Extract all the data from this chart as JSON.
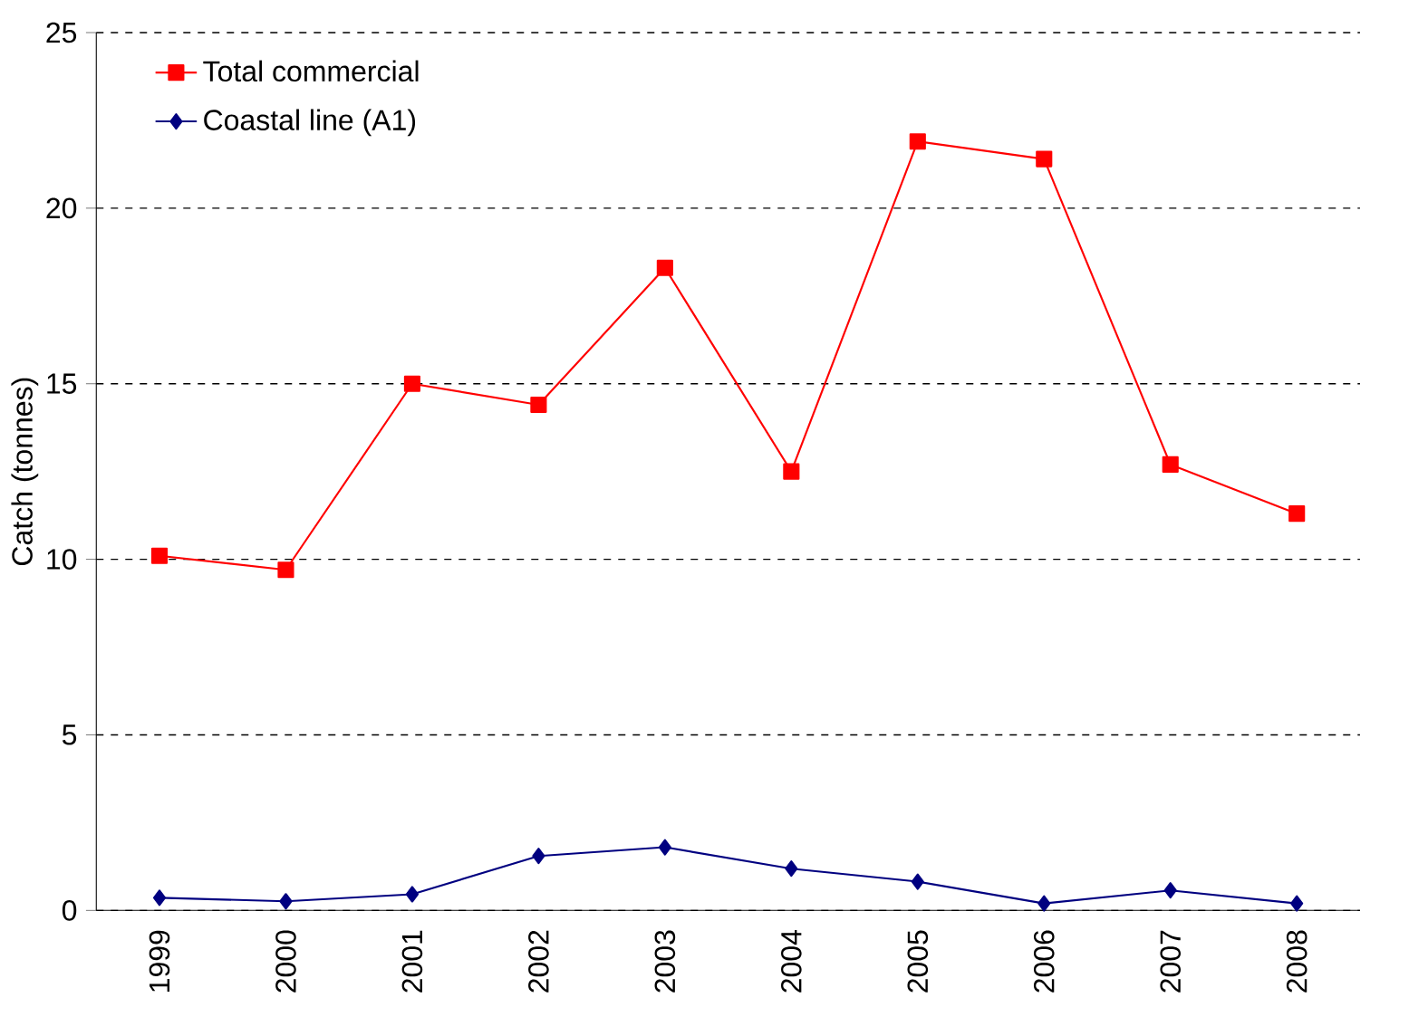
{
  "chart_data": {
    "type": "line",
    "ylabel": "Catch (tonnes)",
    "categories": [
      "1999",
      "2000",
      "2001",
      "2002",
      "2003",
      "2004",
      "2005",
      "2006",
      "2007",
      "2008"
    ],
    "series": [
      {
        "name": "Total commercial",
        "color": "#ff0000",
        "marker": "square",
        "values": [
          10.1,
          9.7,
          15.0,
          14.4,
          18.3,
          12.5,
          21.9,
          21.4,
          12.7,
          11.3
        ]
      },
      {
        "name": "Coastal line (A1)",
        "color": "#000080",
        "marker": "diamond",
        "values": [
          0.36,
          0.26,
          0.46,
          1.55,
          1.8,
          1.19,
          0.82,
          0.2,
          0.57,
          0.2
        ]
      }
    ],
    "ylim": [
      0,
      25
    ],
    "yticks": [
      0,
      5,
      10,
      15,
      20,
      25
    ],
    "grid": "y",
    "legend": "top left",
    "line_style": "solid"
  }
}
